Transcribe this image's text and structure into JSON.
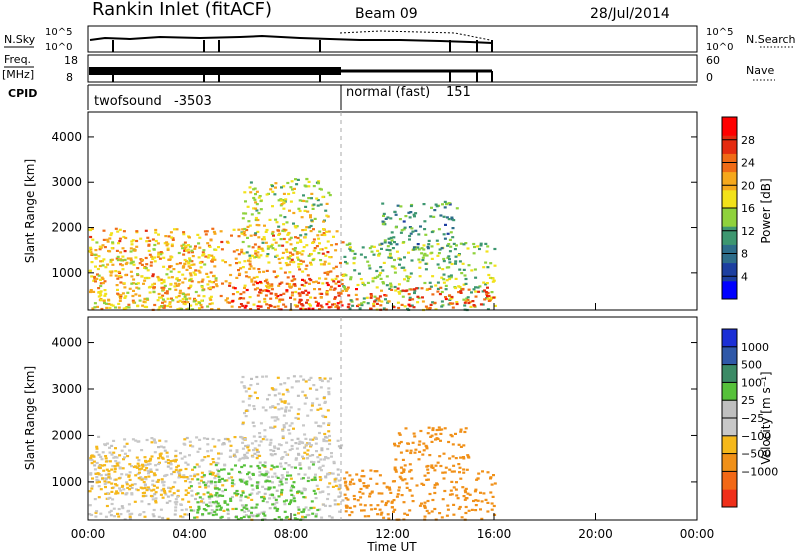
{
  "header": {
    "station": "Rankin Inlet (fitACF)",
    "beam": "Beam 09",
    "date": "28/Jul/2014"
  },
  "strip": {
    "nsky_label": "N.Sky",
    "nsky_ticks": [
      "10^5",
      "10^0"
    ],
    "nsearch_label": "N.Search",
    "nsearch_ticks": [
      "10^5",
      "10^0"
    ],
    "freq_label": "Freq.",
    "freq_unit": "[MHz]",
    "freq_ticks": [
      "18",
      "8"
    ],
    "nave_label": "Nave",
    "nave_ticks": [
      "60",
      "0"
    ],
    "cpid_label": "CPID",
    "cpid_modes": [
      {
        "name": "twofsound",
        "id": "-3503"
      },
      {
        "name": "normal (fast)",
        "id": "151"
      }
    ]
  },
  "axes": {
    "ylabel": "Slant Range [km]",
    "yticks": [
      "1000",
      "2000",
      "3000",
      "4000"
    ],
    "xticks": [
      "00:00",
      "04:00",
      "08:00",
      "12:00",
      "16:00",
      "20:00",
      "00:00"
    ],
    "xlabel": "Time UT"
  },
  "power_colorbar": {
    "label": "Power [dB]",
    "ticks": [
      "4",
      "8",
      "12",
      "16",
      "20",
      "24",
      "28"
    ],
    "colors": [
      "#0000ff",
      "#1c3fa0",
      "#2d6d8a",
      "#3d9770",
      "#8fd23c",
      "#f2e21a",
      "#f6a81c",
      "#f06b16",
      "#e42b10",
      "#ff0000"
    ]
  },
  "velocity_colorbar": {
    "label": "Velocity [m s⁻¹]",
    "ticks": [
      "1000",
      "500",
      "100",
      "25",
      "−25",
      "−100",
      "−500",
      "−1000"
    ],
    "colors": [
      "#1b2fd6",
      "#2f58a8",
      "#3b8a65",
      "#56c13a",
      "#bfbfbf",
      "#c8c8c8",
      "#f5b81b",
      "#f09018",
      "#f26816",
      "#ef2f1a"
    ]
  },
  "chart_data": [
    {
      "type": "heatmap",
      "title": "Power",
      "xlabel": "Time UT",
      "ylabel": "Slant Range [km]",
      "xlim_hours": [
        0,
        24
      ],
      "ylim_km": [
        180,
        4550
      ],
      "cbar_range_db": [
        0,
        32
      ],
      "data_extent_hours": [
        0,
        16
      ],
      "regions": [
        {
          "t": [
            0,
            10
          ],
          "r": [
            200,
            2000
          ],
          "v": 22
        },
        {
          "t": [
            0,
            5
          ],
          "r": [
            200,
            1700
          ],
          "v": 18
        },
        {
          "t": [
            5.5,
            10
          ],
          "r": [
            200,
            900
          ],
          "v": 28
        },
        {
          "t": [
            6,
            9.5
          ],
          "r": [
            1300,
            3100
          ],
          "v": 16
        },
        {
          "t": [
            10,
            16
          ],
          "r": [
            200,
            1700
          ],
          "v": 14
        },
        {
          "t": [
            10,
            16
          ],
          "r": [
            200,
            700
          ],
          "v": 26
        },
        {
          "t": [
            11.5,
            14.5
          ],
          "r": [
            1500,
            2600
          ],
          "v": 10
        }
      ]
    },
    {
      "type": "heatmap",
      "title": "Velocity",
      "xlabel": "Time UT",
      "ylabel": "Slant Range [km]",
      "xlim_hours": [
        0,
        24
      ],
      "ylim_km": [
        180,
        4550
      ],
      "data_extent_hours": [
        0,
        16
      ],
      "regions": [
        {
          "t": [
            0,
            10
          ],
          "r": [
            200,
            2000
          ],
          "v": 0
        },
        {
          "t": [
            0,
            5
          ],
          "r": [
            700,
            1600
          ],
          "v": -60
        },
        {
          "t": [
            4,
            9
          ],
          "r": [
            200,
            1400
          ],
          "v": 150
        },
        {
          "t": [
            6,
            9.5
          ],
          "r": [
            1500,
            3300
          ],
          "v": 0
        },
        {
          "t": [
            10,
            16
          ],
          "r": [
            200,
            1300
          ],
          "v": -300
        },
        {
          "t": [
            12,
            15
          ],
          "r": [
            1200,
            2200
          ],
          "v": -400
        }
      ]
    }
  ]
}
